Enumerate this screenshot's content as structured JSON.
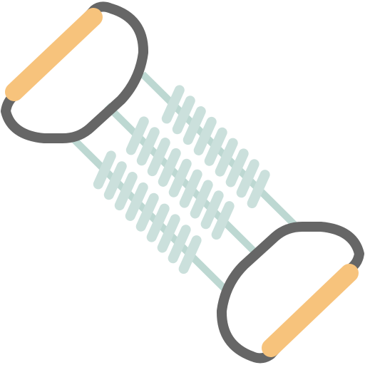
{
  "icon": {
    "name": "chest-expander-icon",
    "colors": {
      "frame": "#666666",
      "handle": "#F7C37C",
      "handle_shade": "#F0B366",
      "spring": "#CBE0DC",
      "spring_rod": "#BDD8D2"
    },
    "springs": 3,
    "coils_per_spring": 9
  }
}
